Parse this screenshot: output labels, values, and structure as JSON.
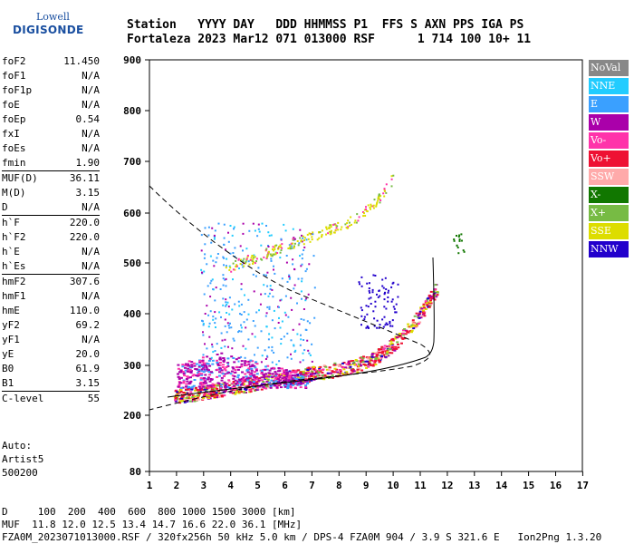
{
  "logo": {
    "line1": "Lowell",
    "line2": "DIGISONDE"
  },
  "header": {
    "line1": "Station   YYYY DAY   DDD HHMMSS P1  FFS S AXN PPS IGA PS",
    "line2": "Fortaleza 2023 Mar12 071 013000 RSF      1 714 100 10+ 11"
  },
  "params": [
    {
      "k": "foF2",
      "v": "11.450"
    },
    {
      "k": "foF1",
      "v": "N/A"
    },
    {
      "k": "foF1p",
      "v": "N/A"
    },
    {
      "k": "foE",
      "v": "N/A"
    },
    {
      "k": "foEp",
      "v": "0.54"
    },
    {
      "k": "fxI",
      "v": "N/A"
    },
    {
      "k": "foEs",
      "v": "N/A"
    },
    {
      "k": "fmin",
      "v": "1.90"
    },
    {
      "k": "MUF(D)",
      "v": "36.11"
    },
    {
      "k": "M(D)",
      "v": "3.15"
    },
    {
      "k": "D",
      "v": "N/A"
    },
    {
      "k": "h`F",
      "v": "220.0"
    },
    {
      "k": "h`F2",
      "v": "220.0"
    },
    {
      "k": "h`E",
      "v": "N/A"
    },
    {
      "k": "h`Es",
      "v": "N/A"
    },
    {
      "k": "hmF2",
      "v": "307.6"
    },
    {
      "k": "hmF1",
      "v": "N/A"
    },
    {
      "k": "hmE",
      "v": "110.0"
    },
    {
      "k": "yF2",
      "v": "69.2"
    },
    {
      "k": "yF1",
      "v": "N/A"
    },
    {
      "k": "yE",
      "v": "20.0"
    },
    {
      "k": "B0",
      "v": "61.9"
    },
    {
      "k": "B1",
      "v": "3.15"
    },
    {
      "k": "C-level",
      "v": "55"
    }
  ],
  "auto": {
    "line1": "Auto:",
    "line2": "Artist5",
    "line3": "500200"
  },
  "legend": [
    {
      "label": "NoVal",
      "color": "#888888"
    },
    {
      "label": "NNE",
      "color": "#22ccff"
    },
    {
      "label": "E",
      "color": "#3aa0ff"
    },
    {
      "label": "W",
      "color": "#aa00aa"
    },
    {
      "label": "Vo-",
      "color": "#ff33aa"
    },
    {
      "label": "Vo+",
      "color": "#ee1133"
    },
    {
      "label": "SSW",
      "color": "#ffaaaa"
    },
    {
      "label": "X-",
      "color": "#117700"
    },
    {
      "label": "X+",
      "color": "#77bb44"
    },
    {
      "label": "SSE",
      "color": "#dddd00"
    },
    {
      "label": "NNW",
      "color": "#2200cc"
    }
  ],
  "axes": {
    "y_ticks": [
      "900",
      "800",
      "700",
      "600",
      "500",
      "400",
      "300",
      "200",
      "80"
    ],
    "x_ticks": [
      "1",
      "2",
      "3",
      "4",
      "5",
      "6",
      "7",
      "8",
      "9",
      "10",
      "11",
      "12",
      "13",
      "14",
      "15",
      "16",
      "17"
    ]
  },
  "bottom": {
    "line1": "D     100  200  400  600  800 1000 1500 3000 [km]",
    "line2": "MUF  11.8 12.0 12.5 13.4 14.7 16.6 22.0 36.1 [MHz]",
    "line3": "FZA0M_2023071013000.RSF / 320fx256h 50 kHz 5.0 km / DPS-4 FZA0M 904 / 3.9 S 321.6 E   Ion2Png 1.3.20"
  }
}
